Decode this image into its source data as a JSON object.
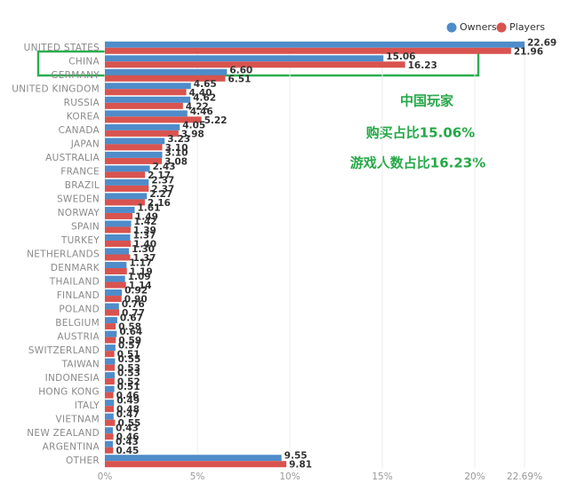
{
  "chart_data": {
    "type": "hbar",
    "categories": [
      "UNITED STATES",
      "CHINA",
      "GERMANY",
      "UNITED KINGDOM",
      "RUSSIA",
      "KOREA",
      "CANADA",
      "JAPAN",
      "AUSTRALIA",
      "FRANCE",
      "BRAZIL",
      "SWEDEN",
      "NORWAY",
      "SPAIN",
      "TURKEY",
      "NETHERLANDS",
      "DENMARK",
      "THAILAND",
      "FINLAND",
      "POLAND",
      "BELGIUM",
      "AUSTRIA",
      "SWITZERLAND",
      "TAIWAN",
      "INDONESIA",
      "HONG KONG",
      "ITALY",
      "VIETNAM",
      "NEW ZEALAND",
      "ARGENTINA",
      "OTHER"
    ],
    "series": [
      {
        "name": "Owners",
        "color": "#4f8cc9",
        "values": [
          22.69,
          15.06,
          6.6,
          4.65,
          4.62,
          4.46,
          4.05,
          3.23,
          3.1,
          2.43,
          2.37,
          2.27,
          1.61,
          1.42,
          1.37,
          1.3,
          1.17,
          1.09,
          0.92,
          0.76,
          0.67,
          0.64,
          0.57,
          0.55,
          0.53,
          0.51,
          0.49,
          0.47,
          0.43,
          0.43,
          9.55
        ],
        "value_labels": [
          "22.69",
          "15.06",
          "6.60",
          "4.65",
          "4.62",
          "4.46",
          "4.05",
          "3.23",
          "3.10",
          "2.43",
          "2.37",
          "2.27",
          "1.61",
          "1.42",
          "1.37",
          "1.30",
          "1.17",
          "1.09",
          "0.92",
          "0.76",
          "0.67",
          "0.64",
          "0.57",
          "0.55",
          "0.53",
          "0.51",
          "0.49",
          "0.47",
          "0.43",
          "0.43",
          "9.55"
        ]
      },
      {
        "name": "Players",
        "color": "#d9534f",
        "values": [
          21.96,
          16.23,
          6.51,
          4.4,
          4.22,
          5.22,
          3.98,
          3.1,
          3.08,
          2.17,
          2.37,
          2.16,
          1.49,
          1.39,
          1.4,
          1.37,
          1.19,
          1.14,
          0.9,
          0.77,
          0.58,
          0.59,
          0.51,
          0.53,
          0.52,
          0.46,
          0.48,
          0.55,
          0.46,
          0.45,
          9.81
        ],
        "value_labels": [
          "21.96",
          "16.23",
          "6.51",
          "4.40",
          "4.22",
          "5.22",
          "3.98",
          "3.10",
          "3.08",
          "2.17",
          "2.37",
          "2.16",
          "1.49",
          "1.39",
          "1.40",
          "1.37",
          "1.19",
          "1.14",
          "0.90",
          "0.77",
          "0.58",
          "0.59",
          "0.51",
          "0.53",
          "0.52",
          "0.46",
          "0.48",
          "0.55",
          "0.46",
          "0.45",
          "9.81"
        ]
      }
    ],
    "xlim": [
      0,
      22.69
    ],
    "xticks": [
      {
        "value": 0,
        "label": "0%"
      },
      {
        "value": 5,
        "label": "5%"
      },
      {
        "value": 10,
        "label": "10%"
      },
      {
        "value": 15,
        "label": "15%"
      },
      {
        "value": 20,
        "label": "20%"
      },
      {
        "value": 22.69,
        "label": "22.69%"
      }
    ],
    "grid": true,
    "legend": "top-right",
    "annotations": [
      "中国玩家",
      "购买占比15.06%",
      "游戏人数占比16.23%"
    ]
  }
}
